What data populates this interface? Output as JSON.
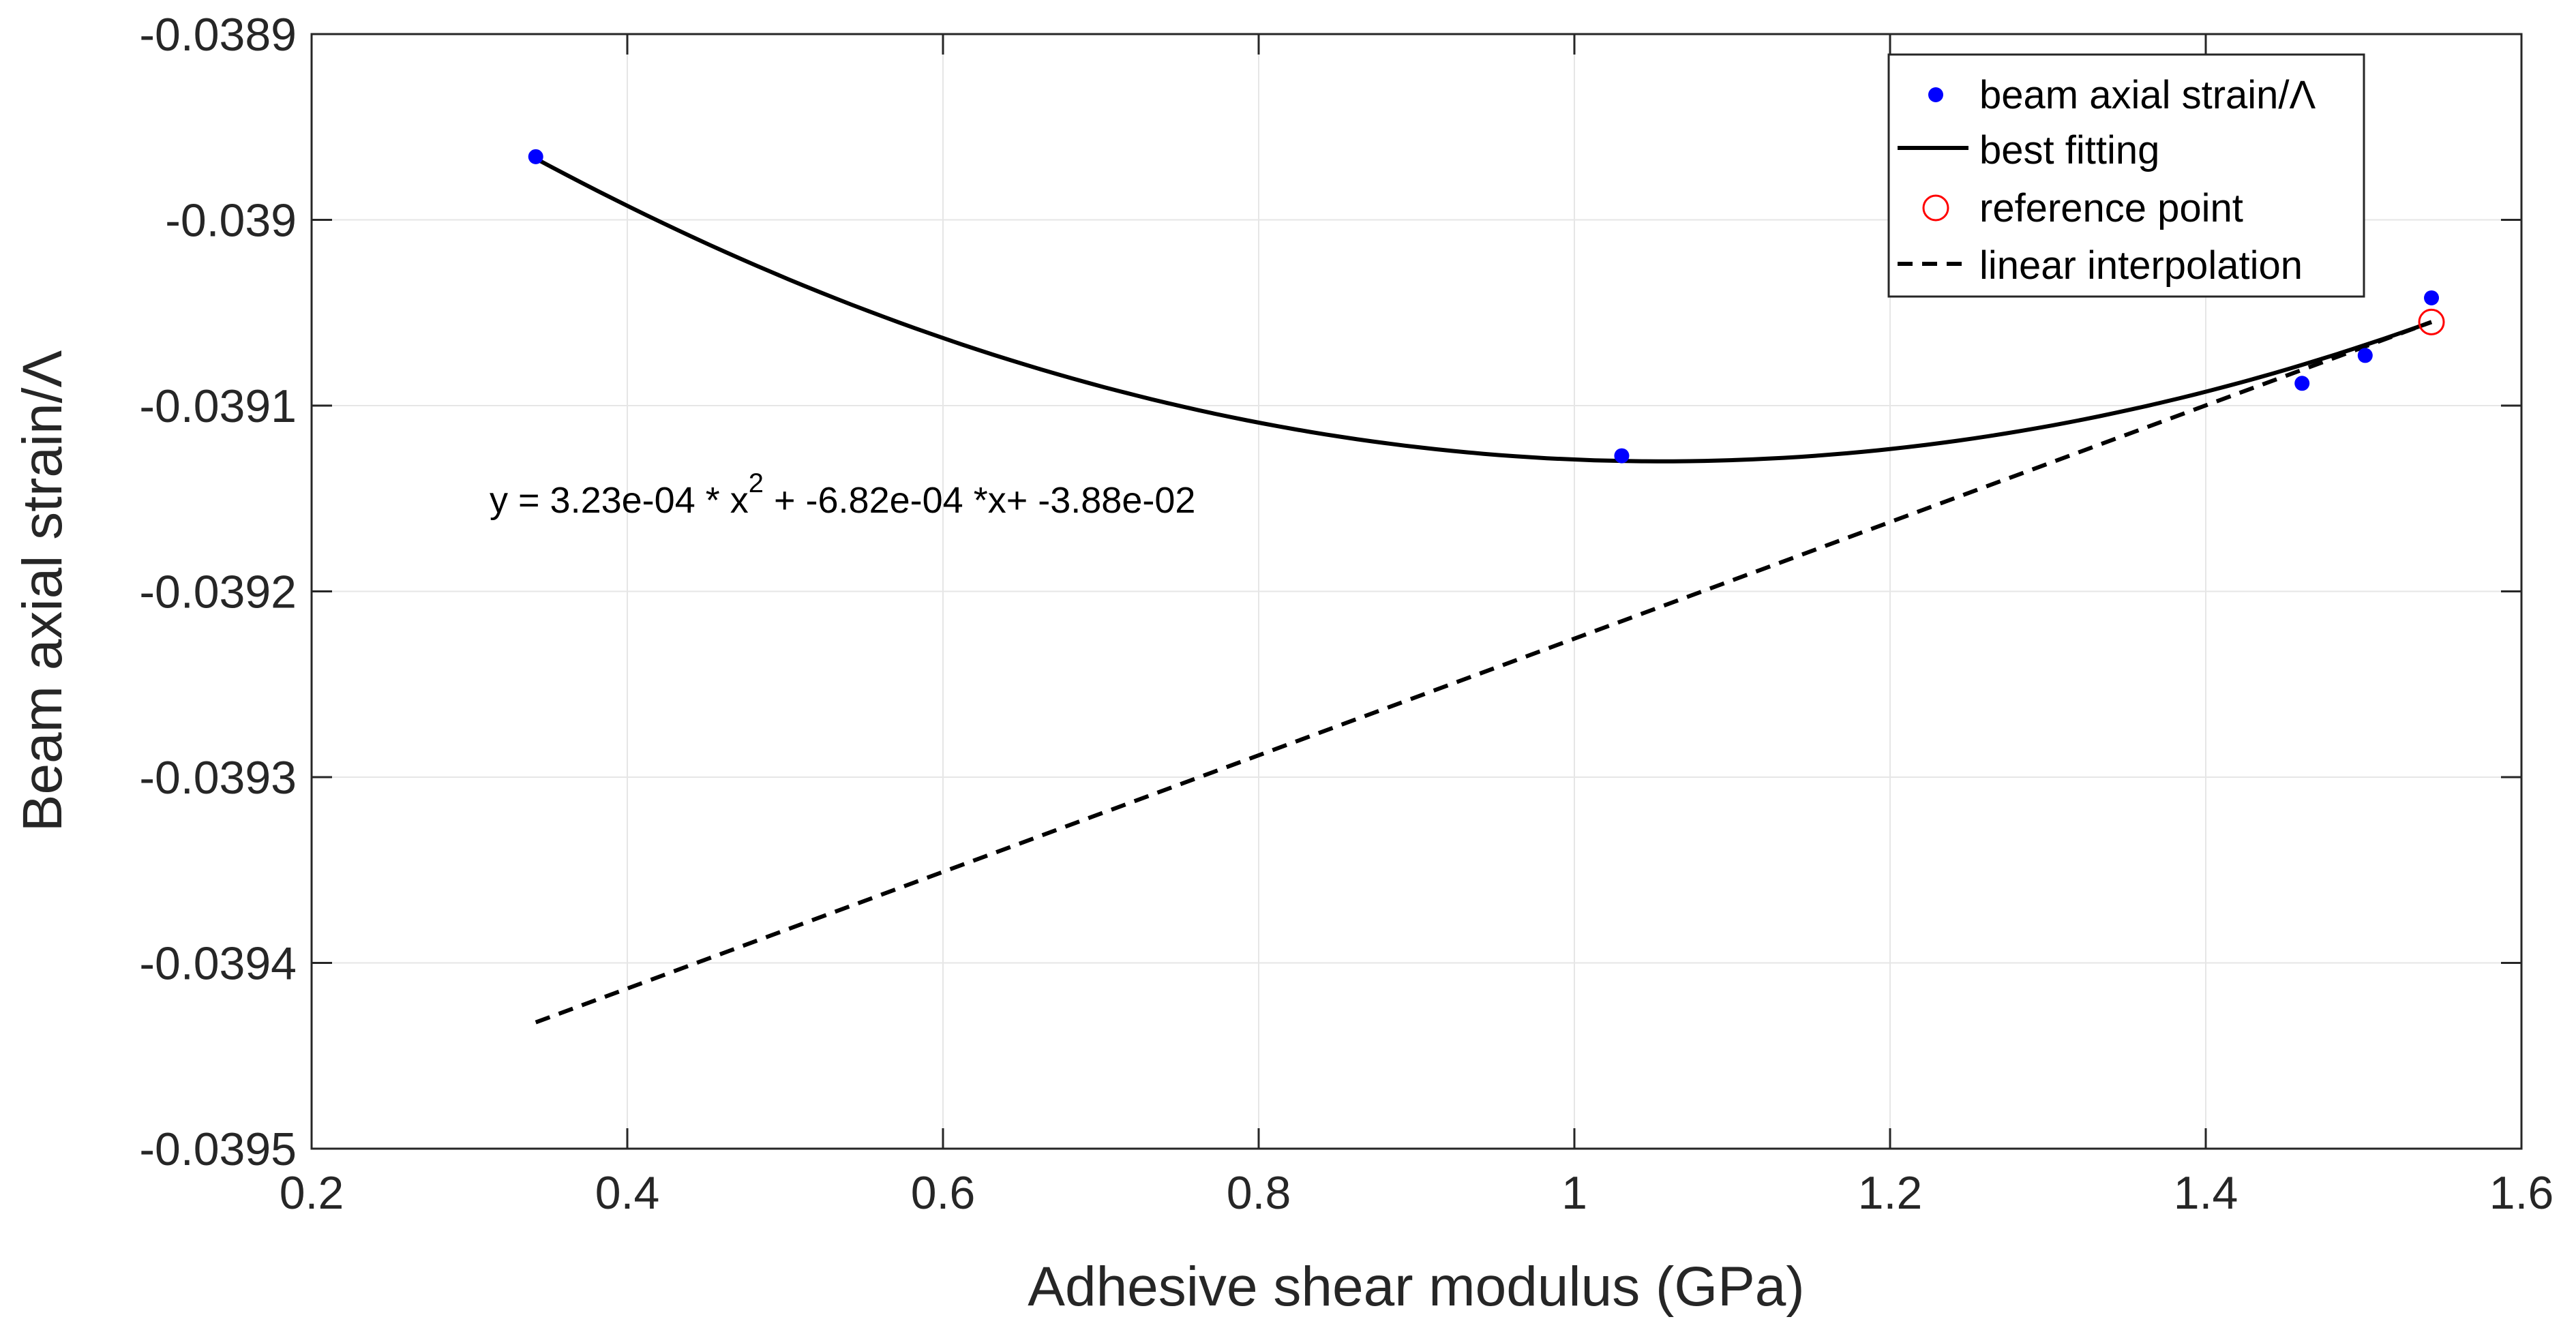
{
  "colors": {
    "data_points": "#0000ff",
    "fit_line": "#000000",
    "reference": "#ff0000",
    "interp_line": "#000000",
    "grid": "#e6e6e6",
    "axes": "#262626"
  },
  "chart_data": {
    "type": "scatter",
    "title": "",
    "xlabel": "Adhesive shear modulus (GPa)",
    "ylabel": "Beam axial strain/Λ",
    "xlim": [
      0.2,
      1.6
    ],
    "ylim": [
      -0.0395,
      -0.0389
    ],
    "x_ticks": [
      0.2,
      0.4,
      0.6,
      0.8,
      1.0,
      1.2,
      1.4,
      1.6
    ],
    "x_tick_labels": [
      "0.2",
      "0.4",
      "0.6",
      "0.8",
      "1",
      "1.2",
      "1.4",
      "1.6"
    ],
    "y_ticks": [
      -0.0395,
      -0.0394,
      -0.0393,
      -0.0392,
      -0.0391,
      -0.039,
      -0.0389
    ],
    "y_tick_labels": [
      "-0.0395",
      "-0.0394",
      "-0.0393",
      "-0.0392",
      "-0.0391",
      "-0.039",
      "-0.0389"
    ],
    "grid": true,
    "legend_position": "top-right",
    "legend": [
      {
        "label": "beam axial strain/Λ",
        "marker": "dot"
      },
      {
        "label": "best fitting",
        "marker": "solid-line"
      },
      {
        "label": "reference point",
        "marker": "open-circle"
      },
      {
        "label": "linear interpolation",
        "marker": "dashed-line"
      }
    ],
    "series": [
      {
        "name": "beam axial strain/Λ",
        "style": "points",
        "x": [
          0.342,
          1.03,
          1.461,
          1.501,
          1.543
        ],
        "y": [
          -0.038966,
          -0.039127,
          -0.039088,
          -0.039073,
          -0.039042
        ]
      },
      {
        "name": "best fitting",
        "style": "quadratic-curve",
        "coefficients": {
          "a": 0.000323,
          "b": -0.000682,
          "c": -0.0388
        },
        "x_range": [
          0.342,
          1.543
        ],
        "y_start": -0.038967,
        "y_min_x": 1.055,
        "y_min": -0.03913,
        "y_end": -0.039055
      },
      {
        "name": "reference point",
        "style": "open-circle",
        "x": [
          1.543
        ],
        "y": [
          -0.039055
        ]
      },
      {
        "name": "linear interpolation",
        "style": "dashed-line",
        "x": [
          0.342,
          1.543
        ],
        "y": [
          -0.039432,
          -0.039055
        ]
      }
    ],
    "annotation": {
      "prefix": "y = 3.23e-04 * x",
      "superscript": "2",
      "suffix": " + -6.82e-04 *x+ -3.88e-02"
    }
  }
}
